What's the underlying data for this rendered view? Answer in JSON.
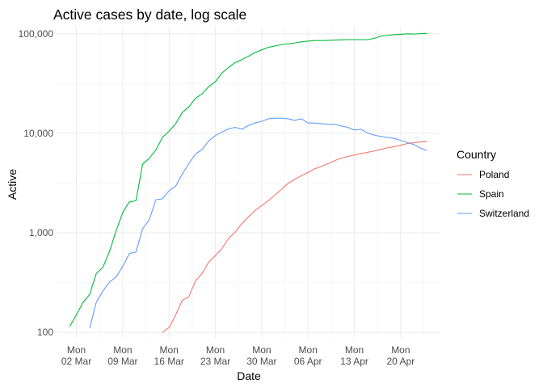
{
  "chart_data": {
    "type": "line",
    "title": "Active cases by date, log scale",
    "xlabel": "Date",
    "ylabel": "Active",
    "y_scale": "log10",
    "ylim": [
      88,
      118000
    ],
    "xlim": [
      "2020-02-28",
      "2020-04-26"
    ],
    "grid": true,
    "legend_title": "Country",
    "legend_position": "right",
    "x_ticks": [
      {
        "date": "2020-03-02",
        "line1": "Mon",
        "line2": "02 Mar"
      },
      {
        "date": "2020-03-09",
        "line1": "Mon",
        "line2": "09 Mar"
      },
      {
        "date": "2020-03-16",
        "line1": "Mon",
        "line2": "16 Mar"
      },
      {
        "date": "2020-03-23",
        "line1": "Mon",
        "line2": "23 Mar"
      },
      {
        "date": "2020-03-30",
        "line1": "Mon",
        "line2": "30 Mar"
      },
      {
        "date": "2020-04-06",
        "line1": "Mon",
        "line2": "06 Apr"
      },
      {
        "date": "2020-04-13",
        "line1": "Mon",
        "line2": "13 Apr"
      },
      {
        "date": "2020-04-20",
        "line1": "Mon",
        "line2": "20 Apr"
      }
    ],
    "y_ticks": [
      {
        "value": 100,
        "label": "100"
      },
      {
        "value": 1000,
        "label": "1,000"
      },
      {
        "value": 10000,
        "label": "10,000"
      },
      {
        "value": 100000,
        "label": "100,000"
      }
    ],
    "series": [
      {
        "name": "Poland",
        "color": "#F8766D",
        "points": [
          [
            "2020-03-15",
            100
          ],
          [
            "2020-03-16",
            112
          ],
          [
            "2020-03-17",
            150
          ],
          [
            "2020-03-18",
            210
          ],
          [
            "2020-03-19",
            228
          ],
          [
            "2020-03-20",
            330
          ],
          [
            "2020-03-21",
            390
          ],
          [
            "2020-03-22",
            510
          ],
          [
            "2020-03-23",
            590
          ],
          [
            "2020-03-24",
            700
          ],
          [
            "2020-03-25",
            880
          ],
          [
            "2020-03-26",
            1020
          ],
          [
            "2020-03-27",
            1240
          ],
          [
            "2020-03-28",
            1450
          ],
          [
            "2020-03-29",
            1680
          ],
          [
            "2020-03-30",
            1880
          ],
          [
            "2020-03-31",
            2100
          ],
          [
            "2020-04-01",
            2400
          ],
          [
            "2020-04-02",
            2750
          ],
          [
            "2020-04-03",
            3150
          ],
          [
            "2020-04-04",
            3450
          ],
          [
            "2020-04-05",
            3750
          ],
          [
            "2020-04-06",
            4050
          ],
          [
            "2020-04-07",
            4400
          ],
          [
            "2020-04-08",
            4650
          ],
          [
            "2020-04-09",
            4950
          ],
          [
            "2020-04-10",
            5300
          ],
          [
            "2020-04-11",
            5650
          ],
          [
            "2020-04-12",
            5850
          ],
          [
            "2020-04-13",
            6050
          ],
          [
            "2020-04-14",
            6250
          ],
          [
            "2020-04-15",
            6450
          ],
          [
            "2020-04-16",
            6650
          ],
          [
            "2020-04-17",
            6900
          ],
          [
            "2020-04-18",
            7150
          ],
          [
            "2020-04-19",
            7350
          ],
          [
            "2020-04-20",
            7600
          ],
          [
            "2020-04-21",
            7900
          ],
          [
            "2020-04-22",
            8050
          ],
          [
            "2020-04-23",
            8200
          ],
          [
            "2020-04-24",
            8300
          ]
        ]
      },
      {
        "name": "Spain",
        "color": "#00BA38",
        "points": [
          [
            "2020-03-01",
            115
          ],
          [
            "2020-03-02",
            150
          ],
          [
            "2020-03-03",
            200
          ],
          [
            "2020-03-04",
            240
          ],
          [
            "2020-03-05",
            390
          ],
          [
            "2020-03-06",
            450
          ],
          [
            "2020-03-07",
            650
          ],
          [
            "2020-03-08",
            1050
          ],
          [
            "2020-03-09",
            1600
          ],
          [
            "2020-03-10",
            2050
          ],
          [
            "2020-03-11",
            2100
          ],
          [
            "2020-03-12",
            4900
          ],
          [
            "2020-03-13",
            5600
          ],
          [
            "2020-03-14",
            6800
          ],
          [
            "2020-03-15",
            9100
          ],
          [
            "2020-03-16",
            10500
          ],
          [
            "2020-03-17",
            12500
          ],
          [
            "2020-03-18",
            16200
          ],
          [
            "2020-03-19",
            18500
          ],
          [
            "2020-03-20",
            22500
          ],
          [
            "2020-03-21",
            25000
          ],
          [
            "2020-03-22",
            29500
          ],
          [
            "2020-03-23",
            33000
          ],
          [
            "2020-03-24",
            40500
          ],
          [
            "2020-03-25",
            46000
          ],
          [
            "2020-03-26",
            51500
          ],
          [
            "2020-03-27",
            55000
          ],
          [
            "2020-03-28",
            59500
          ],
          [
            "2020-03-29",
            65000
          ],
          [
            "2020-03-30",
            69000
          ],
          [
            "2020-03-31",
            73000
          ],
          [
            "2020-04-01",
            75500
          ],
          [
            "2020-04-02",
            78000
          ],
          [
            "2020-04-03",
            79500
          ],
          [
            "2020-04-04",
            81000
          ],
          [
            "2020-04-05",
            83000
          ],
          [
            "2020-04-06",
            84500
          ],
          [
            "2020-04-07",
            85500
          ],
          [
            "2020-04-08",
            85500
          ],
          [
            "2020-04-09",
            86000
          ],
          [
            "2020-04-10",
            86500
          ],
          [
            "2020-04-11",
            87000
          ],
          [
            "2020-04-12",
            87500
          ],
          [
            "2020-04-13",
            87500
          ],
          [
            "2020-04-14",
            87500
          ],
          [
            "2020-04-15",
            87500
          ],
          [
            "2020-04-16",
            90000
          ],
          [
            "2020-04-17",
            95000
          ],
          [
            "2020-04-18",
            96500
          ],
          [
            "2020-04-19",
            98000
          ],
          [
            "2020-04-20",
            99000
          ],
          [
            "2020-04-21",
            100000
          ],
          [
            "2020-04-22",
            99500
          ],
          [
            "2020-04-23",
            100500
          ],
          [
            "2020-04-24",
            101000
          ]
        ]
      },
      {
        "name": "Switzerland",
        "color": "#619CFF",
        "points": [
          [
            "2020-03-04",
            110
          ],
          [
            "2020-03-05",
            200
          ],
          [
            "2020-03-06",
            260
          ],
          [
            "2020-03-07",
            320
          ],
          [
            "2020-03-08",
            360
          ],
          [
            "2020-03-09",
            460
          ],
          [
            "2020-03-10",
            620
          ],
          [
            "2020-03-11",
            640
          ],
          [
            "2020-03-12",
            1100
          ],
          [
            "2020-03-13",
            1350
          ],
          [
            "2020-03-14",
            2150
          ],
          [
            "2020-03-15",
            2200
          ],
          [
            "2020-03-16",
            2650
          ],
          [
            "2020-03-17",
            2950
          ],
          [
            "2020-03-18",
            3900
          ],
          [
            "2020-03-19",
            5000
          ],
          [
            "2020-03-20",
            6200
          ],
          [
            "2020-03-21",
            6900
          ],
          [
            "2020-03-22",
            8400
          ],
          [
            "2020-03-23",
            9500
          ],
          [
            "2020-03-24",
            10300
          ],
          [
            "2020-03-25",
            11100
          ],
          [
            "2020-03-26",
            11500
          ],
          [
            "2020-03-27",
            11000
          ],
          [
            "2020-03-28",
            12000
          ],
          [
            "2020-03-29",
            12700
          ],
          [
            "2020-03-30",
            13200
          ],
          [
            "2020-03-31",
            14000
          ],
          [
            "2020-04-01",
            14200
          ],
          [
            "2020-04-02",
            14200
          ],
          [
            "2020-04-03",
            14000
          ],
          [
            "2020-04-04",
            13500
          ],
          [
            "2020-04-05",
            14000
          ],
          [
            "2020-04-06",
            12700
          ],
          [
            "2020-04-07",
            12700
          ],
          [
            "2020-04-08",
            12500
          ],
          [
            "2020-04-09",
            12300
          ],
          [
            "2020-04-10",
            12300
          ],
          [
            "2020-04-11",
            11900
          ],
          [
            "2020-04-12",
            11500
          ],
          [
            "2020-04-13",
            10800
          ],
          [
            "2020-04-14",
            11000
          ],
          [
            "2020-04-15",
            10100
          ],
          [
            "2020-04-16",
            9600
          ],
          [
            "2020-04-17",
            9300
          ],
          [
            "2020-04-18",
            9100
          ],
          [
            "2020-04-19",
            8900
          ],
          [
            "2020-04-20",
            8500
          ],
          [
            "2020-04-21",
            8100
          ],
          [
            "2020-04-22",
            7700
          ],
          [
            "2020-04-23",
            7100
          ],
          [
            "2020-04-24",
            6700
          ]
        ]
      }
    ]
  }
}
